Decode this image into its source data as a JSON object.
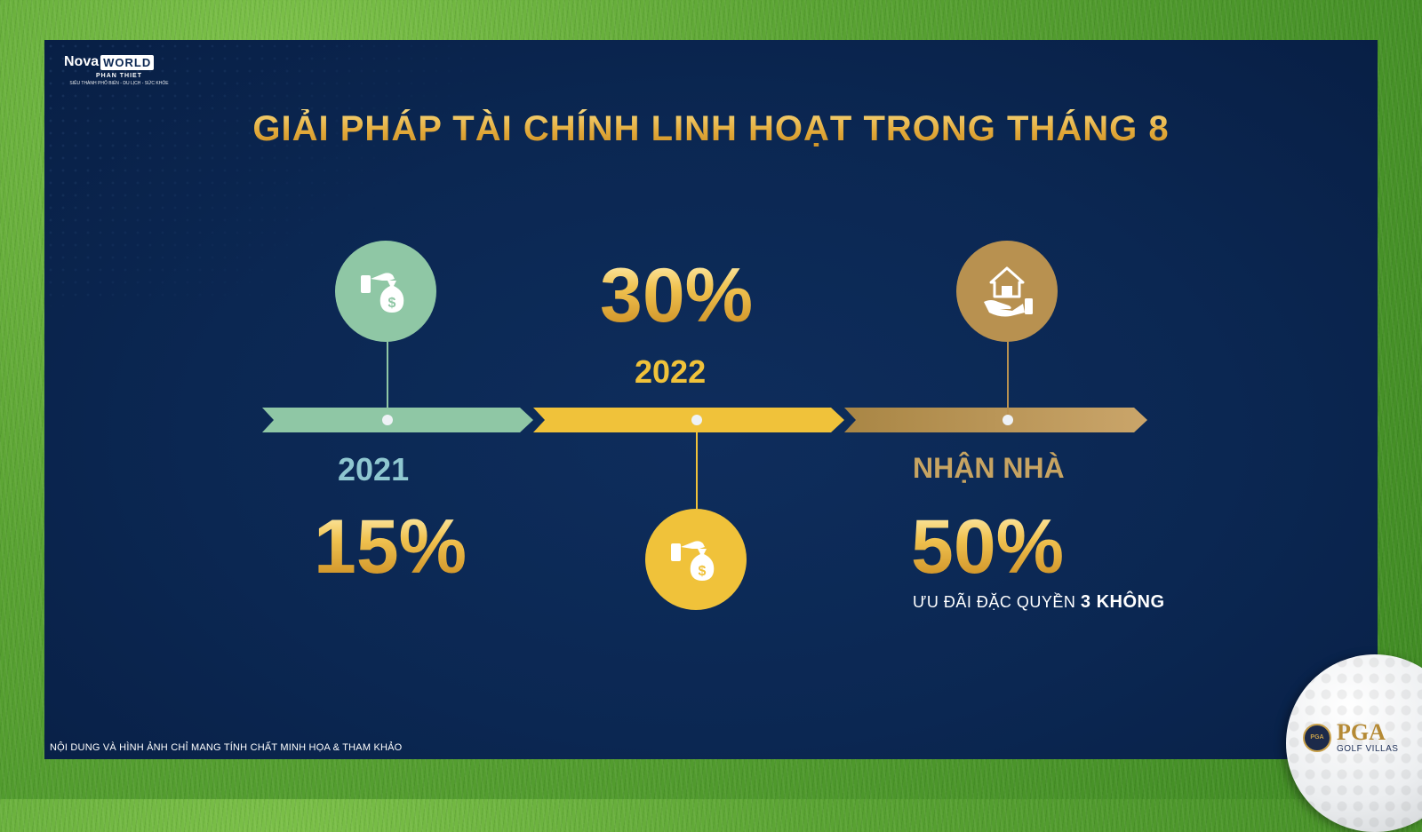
{
  "logo": {
    "brand_nova": "Nova",
    "brand_world": "WORLD",
    "location": "PHAN THIET",
    "tagline": "SIÊU THÀNH PHỐ BIỂN - DU LỊCH - SỨC KHỎE"
  },
  "title": "GIẢI PHÁP TÀI CHÍNH LINH HOẠT TRONG THÁNG 8",
  "timeline": [
    {
      "label": "2021",
      "percent": "15%",
      "icon": "money-bag-hand-icon",
      "color": "#8fc7a5"
    },
    {
      "label": "2022",
      "percent": "30%",
      "icon": "money-bag-hand-icon",
      "color": "#f0c23a"
    },
    {
      "label": "NHẬN NHÀ",
      "percent": "50%",
      "icon": "house-hand-icon",
      "color": "#b89150"
    }
  ],
  "perk": {
    "text": "ƯU ĐÃI ĐẶC QUYỀN ",
    "highlight": "3 KHÔNG"
  },
  "disclaimer": "NỘI DUNG VÀ HÌNH ẢNH CHỈ MANG TÍNH CHẤT MINH HỌA & THAM KHẢO",
  "badge": {
    "main": "PGA",
    "sub": "GOLF VILLAS",
    "seal": "PGA"
  }
}
